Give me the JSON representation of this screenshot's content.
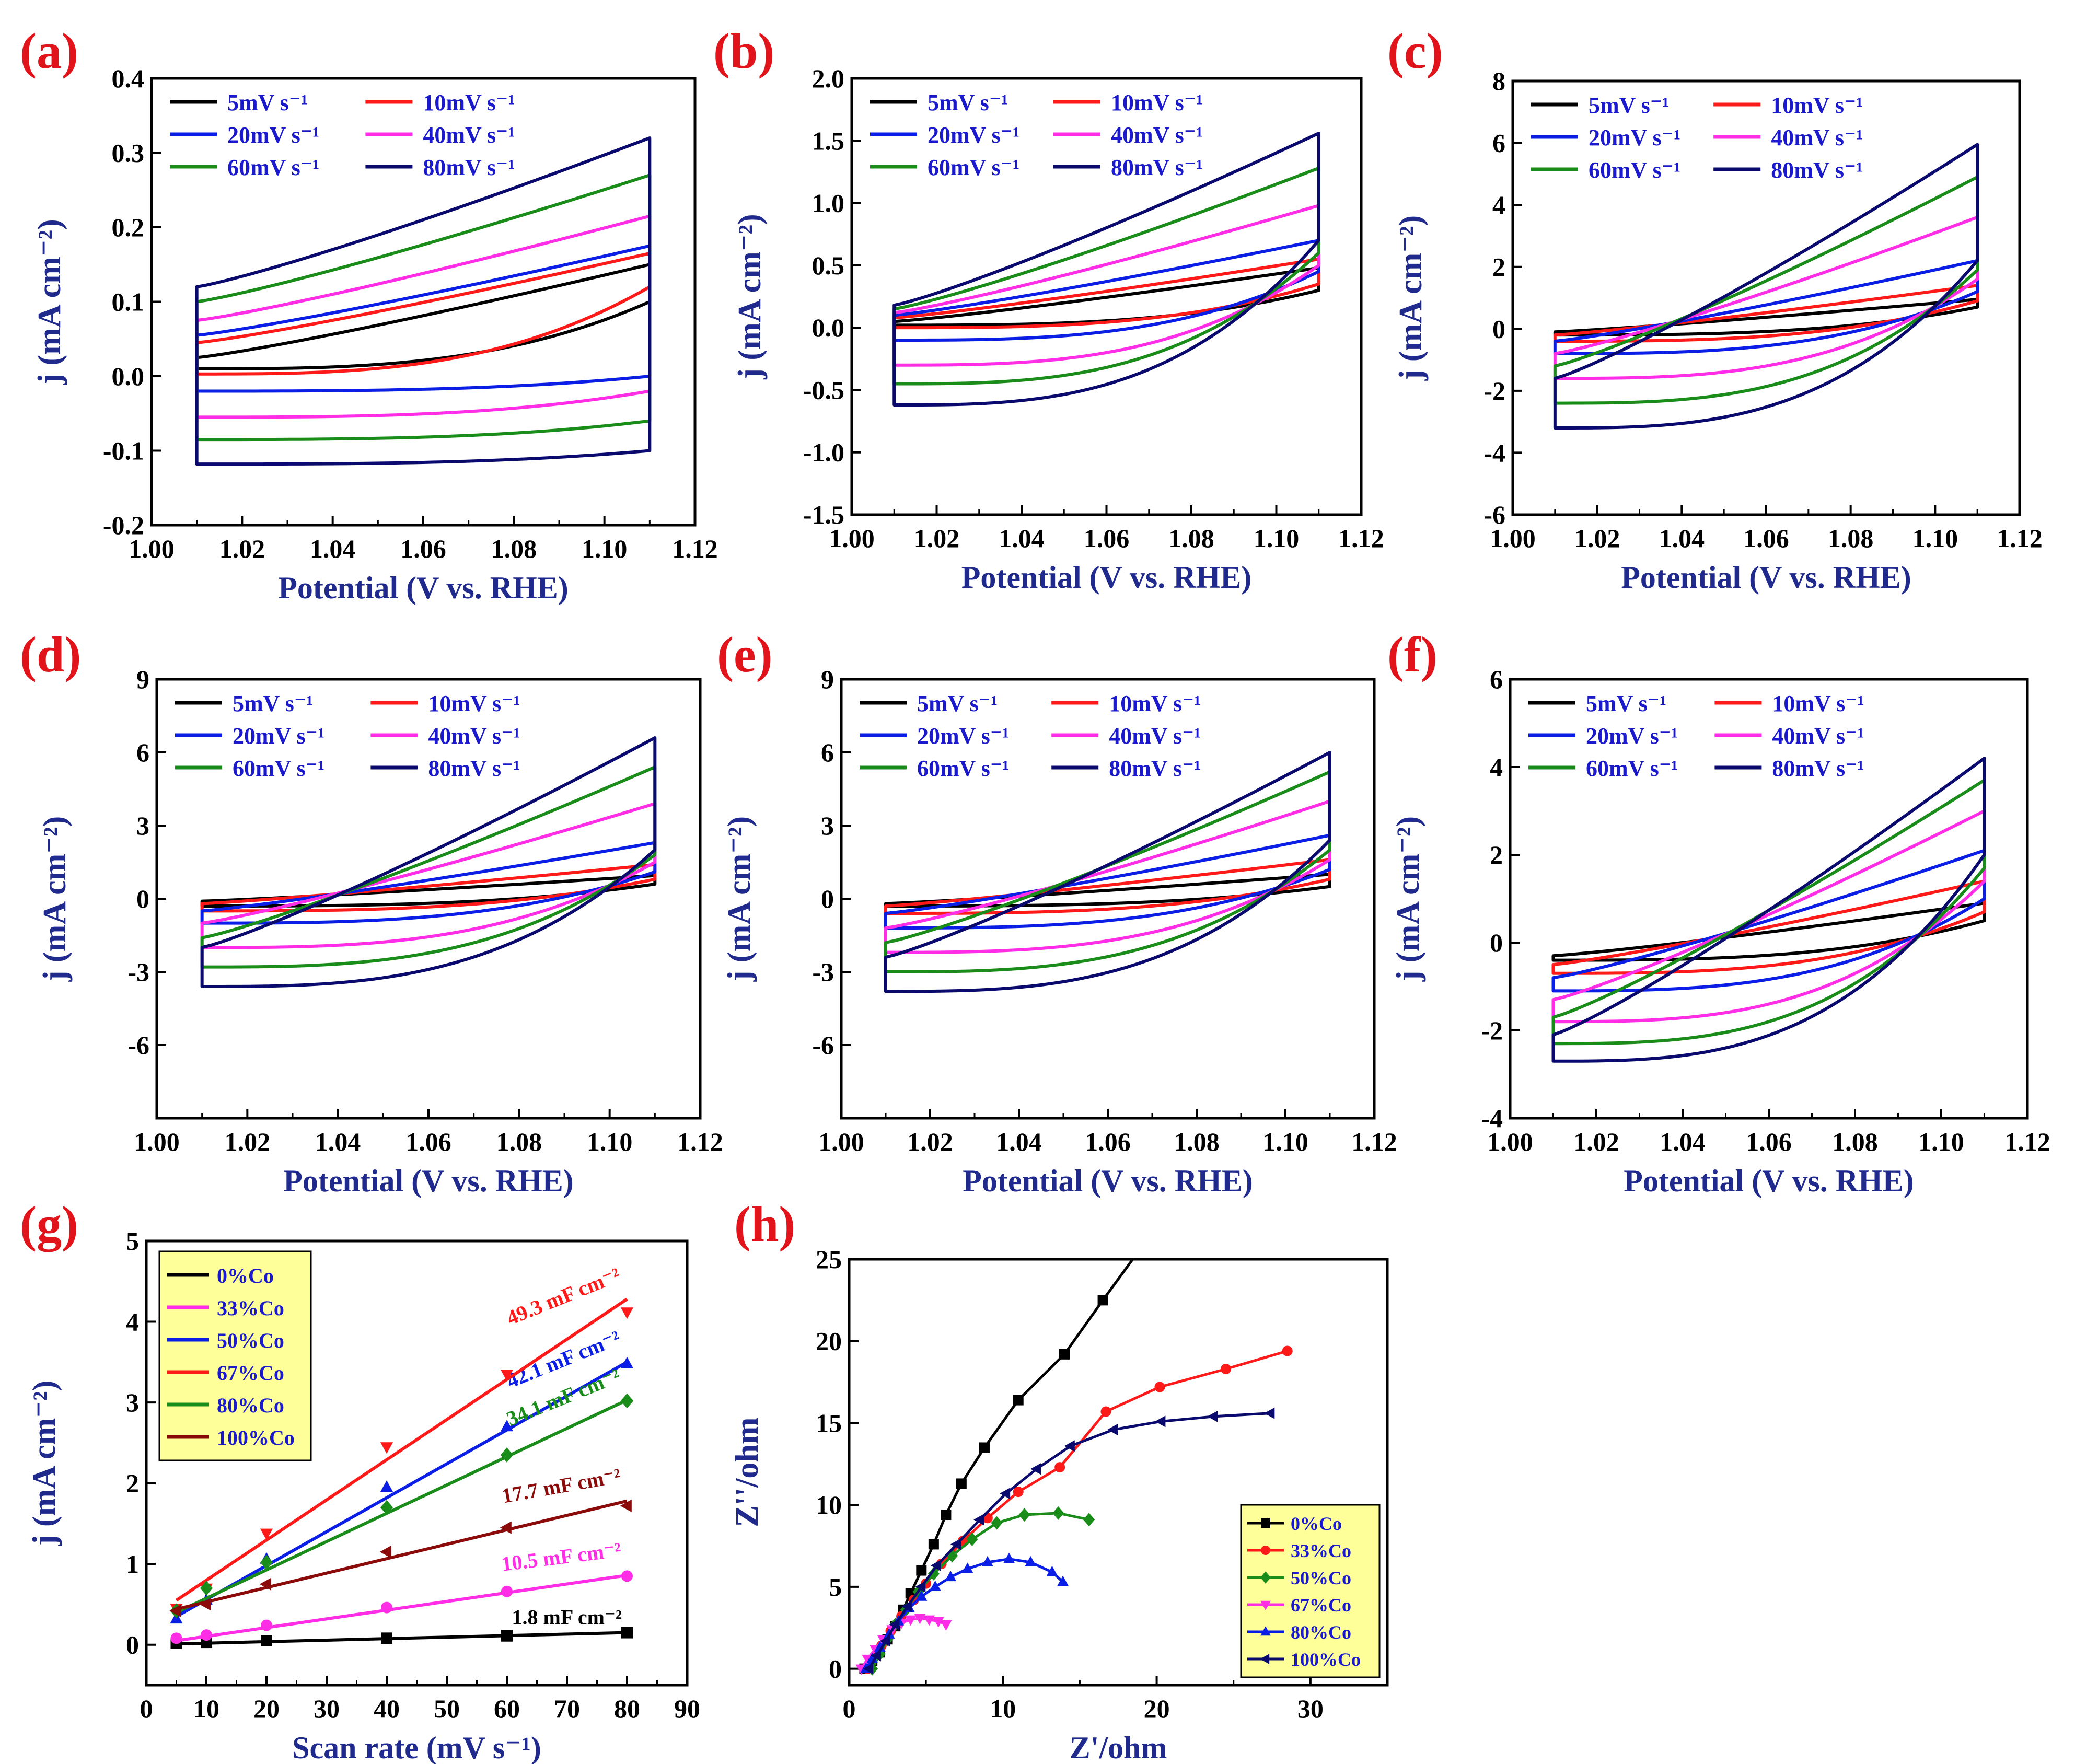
{
  "legend_cv": [
    "5mV s⁻¹",
    "10mV s⁻¹",
    "20mV s⁻¹",
    "40mV s⁻¹",
    "60mV s⁻¹",
    "80mV s⁻¹"
  ],
  "legend_text_color": "#1a1acc",
  "frame_color": "#000000",
  "axis_label_color": "#1f2a8c",
  "panel_label_color": "#e0141a",
  "chart_data": [
    {
      "panel": "(a)",
      "type": "line",
      "xlabel": "Potential (V vs. RHE)",
      "ylabel": "j (mA cm⁻²)",
      "xlim": [
        1.0,
        1.12
      ],
      "ylim": [
        -0.2,
        0.4
      ],
      "xticks": [
        "1.00",
        "1.02",
        "1.04",
        "1.06",
        "1.08",
        "1.10",
        "1.12"
      ],
      "yticks": [
        "-0.2",
        "-0.1",
        "0.0",
        "0.1",
        "0.2",
        "0.3",
        "0.4"
      ],
      "legend_placement": "top-left",
      "series": [
        {
          "name": "5mV s⁻¹",
          "color": "#000000",
          "upper_start": 0.025,
          "upper_end": 0.15,
          "lower_start": 0.01,
          "lower_end": 0.1,
          "bow": 0.5
        },
        {
          "name": "10mV s⁻¹",
          "color": "#ff1a1a",
          "upper_start": 0.045,
          "upper_end": 0.165,
          "lower_start": 0.003,
          "lower_end": 0.12,
          "bow": 0.3
        },
        {
          "name": "20mV s⁻¹",
          "color": "#0a1ee6",
          "upper_start": 0.055,
          "upper_end": 0.175,
          "lower_start": -0.02,
          "lower_end": 0.0,
          "bow": 0.2
        },
        {
          "name": "40mV s⁻¹",
          "color": "#ff2ee6",
          "upper_start": 0.075,
          "upper_end": 0.215,
          "lower_start": -0.055,
          "lower_end": -0.02,
          "bow": 0.2
        },
        {
          "name": "60mV s⁻¹",
          "color": "#1a8c1a",
          "upper_start": 0.1,
          "upper_end": 0.27,
          "lower_start": -0.085,
          "lower_end": -0.06,
          "bow": 0.2
        },
        {
          "name": "80mV s⁻¹",
          "color": "#0a0a6e",
          "upper_start": 0.12,
          "upper_end": 0.32,
          "lower_start": -0.118,
          "lower_end": -0.1,
          "bow": 0.15
        }
      ]
    },
    {
      "panel": "(b)",
      "type": "line",
      "xlabel": "Potential (V vs. RHE)",
      "ylabel": "j (mA cm⁻²)",
      "xlim": [
        1.0,
        1.12
      ],
      "ylim": [
        -1.5,
        2.0
      ],
      "xticks": [
        "1.00",
        "1.02",
        "1.04",
        "1.06",
        "1.08",
        "1.10",
        "1.12"
      ],
      "yticks": [
        "-1.5",
        "-1.0",
        "-0.5",
        "0.0",
        "0.5",
        "1.0",
        "1.5",
        "2.0"
      ],
      "legend_placement": "top-left",
      "series": [
        {
          "name": "5mV s⁻¹",
          "color": "#000000",
          "upper_start": 0.05,
          "upper_end": 0.48,
          "lower_start": 0.02,
          "lower_end": 0.3,
          "bow": 0.6
        },
        {
          "name": "10mV s⁻¹",
          "color": "#ff1a1a",
          "upper_start": 0.08,
          "upper_end": 0.55,
          "lower_start": 0.0,
          "lower_end": 0.35,
          "bow": 0.4
        },
        {
          "name": "20mV s⁻¹",
          "color": "#0a1ee6",
          "upper_start": 0.1,
          "upper_end": 0.7,
          "lower_start": -0.1,
          "lower_end": 0.45,
          "bow": 0.5
        },
        {
          "name": "40mV s⁻¹",
          "color": "#ff2ee6",
          "upper_start": 0.12,
          "upper_end": 0.98,
          "lower_start": -0.3,
          "lower_end": 0.5,
          "bow": 0.6
        },
        {
          "name": "60mV s⁻¹",
          "color": "#1a8c1a",
          "upper_start": 0.15,
          "upper_end": 1.28,
          "lower_start": -0.45,
          "lower_end": 0.6,
          "bow": 0.7
        },
        {
          "name": "80mV s⁻¹",
          "color": "#0a0a6e",
          "upper_start": 0.18,
          "upper_end": 1.56,
          "lower_start": -0.62,
          "lower_end": 0.7,
          "bow": 0.8
        }
      ]
    },
    {
      "panel": "(c)",
      "type": "line",
      "xlabel": "Potential (V vs. RHE)",
      "ylabel": "j (mA cm⁻²)",
      "xlim": [
        1.0,
        1.12
      ],
      "ylim": [
        -6,
        8
      ],
      "xticks": [
        "1.00",
        "1.02",
        "1.04",
        "1.06",
        "1.08",
        "1.10",
        "1.12"
      ],
      "yticks": [
        "-6",
        "-4",
        "-2",
        "0",
        "2",
        "4",
        "6",
        "8"
      ],
      "legend_placement": "top-left",
      "series": [
        {
          "name": "5mV s⁻¹",
          "color": "#000000",
          "upper_start": -0.1,
          "upper_end": 0.95,
          "lower_start": -0.2,
          "lower_end": 0.7,
          "bow": 0.5
        },
        {
          "name": "10mV s⁻¹",
          "color": "#ff1a1a",
          "upper_start": -0.2,
          "upper_end": 1.4,
          "lower_start": -0.4,
          "lower_end": 0.9,
          "bow": 0.7
        },
        {
          "name": "20mV s⁻¹",
          "color": "#0a1ee6",
          "upper_start": -0.4,
          "upper_end": 2.2,
          "lower_start": -0.8,
          "lower_end": 1.2,
          "bow": 1.0
        },
        {
          "name": "40mV s⁻¹",
          "color": "#ff2ee6",
          "upper_start": -0.8,
          "upper_end": 3.6,
          "lower_start": -1.6,
          "lower_end": 1.6,
          "bow": 1.5
        },
        {
          "name": "60mV s⁻¹",
          "color": "#1a8c1a",
          "upper_start": -1.2,
          "upper_end": 4.9,
          "lower_start": -2.4,
          "lower_end": 1.9,
          "bow": 2.0
        },
        {
          "name": "80mV s⁻¹",
          "color": "#0a0a6e",
          "upper_start": -1.6,
          "upper_end": 5.95,
          "lower_start": -3.2,
          "lower_end": 2.2,
          "bow": 2.4
        }
      ]
    },
    {
      "panel": "(d)",
      "type": "line",
      "xlabel": "Potential (V vs. RHE)",
      "ylabel": "j (mA cm⁻²)",
      "xlim": [
        1.0,
        1.12
      ],
      "ylim": [
        -9,
        9
      ],
      "xticks": [
        "1.00",
        "1.02",
        "1.04",
        "1.06",
        "1.08",
        "1.10",
        "1.12"
      ],
      "yticks": [
        "-6",
        "-3",
        "0",
        "3",
        "6",
        "9"
      ],
      "legend_placement": "top-left",
      "series": [
        {
          "name": "5mV s⁻¹",
          "color": "#000000",
          "upper_start": -0.1,
          "upper_end": 0.95,
          "lower_start": -0.3,
          "lower_end": 0.6,
          "bow": 0.5
        },
        {
          "name": "10mV s⁻¹",
          "color": "#ff1a1a",
          "upper_start": -0.2,
          "upper_end": 1.4,
          "lower_start": -0.5,
          "lower_end": 0.8,
          "bow": 0.7
        },
        {
          "name": "20mV s⁻¹",
          "color": "#0a1ee6",
          "upper_start": -0.5,
          "upper_end": 2.3,
          "lower_start": -1.0,
          "lower_end": 1.1,
          "bow": 1.2
        },
        {
          "name": "40mV s⁻¹",
          "color": "#ff2ee6",
          "upper_start": -1.0,
          "upper_end": 3.9,
          "lower_start": -2.0,
          "lower_end": 1.5,
          "bow": 2.0
        },
        {
          "name": "60mV s⁻¹",
          "color": "#1a8c1a",
          "upper_start": -1.6,
          "upper_end": 5.4,
          "lower_start": -2.8,
          "lower_end": 1.8,
          "bow": 2.6
        },
        {
          "name": "80mV s⁻¹",
          "color": "#0a0a6e",
          "upper_start": -2.0,
          "upper_end": 6.6,
          "lower_start": -3.6,
          "lower_end": 2.0,
          "bow": 3.0
        }
      ]
    },
    {
      "panel": "(e)",
      "type": "line",
      "xlabel": "Potential (V vs. RHE)",
      "ylabel": "j (mA cm⁻²)",
      "xlim": [
        1.0,
        1.12
      ],
      "ylim": [
        -9,
        9
      ],
      "xticks": [
        "1.00",
        "1.02",
        "1.04",
        "1.06",
        "1.08",
        "1.10",
        "1.12"
      ],
      "yticks": [
        "-6",
        "-3",
        "0",
        "3",
        "6",
        "9"
      ],
      "legend_placement": "top-left",
      "series": [
        {
          "name": "5mV s⁻¹",
          "color": "#000000",
          "upper_start": -0.2,
          "upper_end": 1.0,
          "lower_start": -0.3,
          "lower_end": 0.5,
          "bow": 0.4
        },
        {
          "name": "10mV s⁻¹",
          "color": "#ff1a1a",
          "upper_start": -0.3,
          "upper_end": 1.6,
          "lower_start": -0.6,
          "lower_end": 0.8,
          "bow": 0.6
        },
        {
          "name": "20mV s⁻¹",
          "color": "#0a1ee6",
          "upper_start": -0.6,
          "upper_end": 2.6,
          "lower_start": -1.2,
          "lower_end": 1.2,
          "bow": 1.0
        },
        {
          "name": "40mV s⁻¹",
          "color": "#ff2ee6",
          "upper_start": -1.2,
          "upper_end": 4.0,
          "lower_start": -2.2,
          "lower_end": 1.6,
          "bow": 1.6
        },
        {
          "name": "60mV s⁻¹",
          "color": "#1a8c1a",
          "upper_start": -1.8,
          "upper_end": 5.2,
          "lower_start": -3.0,
          "lower_end": 2.0,
          "bow": 2.0
        },
        {
          "name": "80mV s⁻¹",
          "color": "#0a0a6e",
          "upper_start": -2.4,
          "upper_end": 6.0,
          "lower_start": -3.8,
          "lower_end": 2.4,
          "bow": 2.3
        }
      ]
    },
    {
      "panel": "(f)",
      "type": "line",
      "xlabel": "Potential (V vs. RHE)",
      "ylabel": "j (mA cm⁻²)",
      "xlim": [
        1.0,
        1.12
      ],
      "ylim": [
        -4,
        6
      ],
      "xticks": [
        "1.00",
        "1.02",
        "1.04",
        "1.06",
        "1.08",
        "1.10",
        "1.12"
      ],
      "yticks": [
        "-4",
        "-2",
        "0",
        "2",
        "4",
        "6"
      ],
      "legend_placement": "top-left",
      "series": [
        {
          "name": "5mV s⁻¹",
          "color": "#000000",
          "upper_start": -0.3,
          "upper_end": 0.9,
          "lower_start": -0.4,
          "lower_end": 0.5,
          "bow": 0.2
        },
        {
          "name": "10mV s⁻¹",
          "color": "#ff1a1a",
          "upper_start": -0.5,
          "upper_end": 1.4,
          "lower_start": -0.7,
          "lower_end": 0.7,
          "bow": 0.2
        },
        {
          "name": "20mV s⁻¹",
          "color": "#0a1ee6",
          "upper_start": -0.8,
          "upper_end": 2.1,
          "lower_start": -1.1,
          "lower_end": 1.0,
          "bow": 0.3
        },
        {
          "name": "40mV s⁻¹",
          "color": "#ff2ee6",
          "upper_start": -1.3,
          "upper_end": 3.0,
          "lower_start": -1.8,
          "lower_end": 1.4,
          "bow": 0.4
        },
        {
          "name": "60mV s⁻¹",
          "color": "#1a8c1a",
          "upper_start": -1.7,
          "upper_end": 3.7,
          "lower_start": -2.3,
          "lower_end": 1.7,
          "bow": 0.5
        },
        {
          "name": "80mV s⁻¹",
          "color": "#0a0a6e",
          "upper_start": -2.1,
          "upper_end": 4.2,
          "lower_start": -2.7,
          "lower_end": 2.0,
          "bow": 0.6
        }
      ]
    },
    {
      "panel": "(g)",
      "type": "scatter",
      "xlabel": "Scan rate (mV s⁻¹)",
      "ylabel": "j (mA cm⁻²)",
      "xlim": [
        0,
        90
      ],
      "ylim": [
        -0.5,
        5
      ],
      "xticks": [
        "0",
        "10",
        "20",
        "30",
        "40",
        "50",
        "60",
        "70",
        "80",
        "90"
      ],
      "yticks": [
        "0",
        "1",
        "2",
        "3",
        "4",
        "5"
      ],
      "x": [
        5,
        10,
        20,
        40,
        60,
        80
      ],
      "legend_placement": "top-left",
      "legend_background": "#ffff99",
      "series": [
        {
          "name": "0%Co",
          "color": "#000000",
          "marker": "square",
          "values": [
            0.02,
            0.03,
            0.05,
            0.08,
            0.11,
            0.15
          ],
          "fit": [
            0.01,
            0.15
          ],
          "label": "1.8 mF cm⁻²"
        },
        {
          "name": "33%Co",
          "color": "#ff2ee6",
          "marker": "circle",
          "values": [
            0.08,
            0.12,
            0.24,
            0.46,
            0.66,
            0.85
          ],
          "fit": [
            0.05,
            0.86
          ],
          "label": "10.5 mF cm⁻²"
        },
        {
          "name": "50%Co",
          "color": "#0a1ee6",
          "marker": "triangle-up",
          "values": [
            0.32,
            0.55,
            1.06,
            1.95,
            2.7,
            3.48
          ],
          "fit": [
            0.35,
            3.5
          ],
          "label": "42.1 mF cm⁻²"
        },
        {
          "name": "67%Co",
          "color": "#ff1a1a",
          "marker": "triangle-down",
          "values": [
            0.45,
            0.7,
            1.38,
            2.45,
            3.35,
            4.12
          ],
          "fit": [
            0.55,
            4.28
          ],
          "label": "49.3 mF cm⁻²"
        },
        {
          "name": "80%Co",
          "color": "#1a8c1a",
          "marker": "diamond",
          "values": [
            0.42,
            0.7,
            1.02,
            1.7,
            2.35,
            3.02
          ],
          "fit": [
            0.4,
            3.03
          ],
          "label": "34.1 mF cm⁻²"
        },
        {
          "name": "100%Co",
          "color": "#8b0a0a",
          "marker": "triangle-left",
          "values": [
            0.42,
            0.5,
            0.75,
            1.15,
            1.45,
            1.72
          ],
          "fit": [
            0.44,
            1.78
          ],
          "label": "17.7 mF cm⁻²"
        }
      ]
    },
    {
      "panel": "(h)",
      "type": "scatter",
      "xlabel": "Z'/ohm",
      "ylabel": "Z''/ohm",
      "xlim": [
        0,
        35
      ],
      "ylim": [
        -1,
        25
      ],
      "xticks": [
        "0",
        "10",
        "20",
        "30"
      ],
      "yticks": [
        "0",
        "5",
        "10",
        "15",
        "20",
        "25"
      ],
      "legend_placement": "bottom-right",
      "legend_background": "#ffff99",
      "series": [
        {
          "name": "0%Co",
          "color": "#000000",
          "marker": "square",
          "x": [
            1.0,
            1.5,
            2.0,
            2.5,
            3.0,
            3.5,
            4.0,
            4.7,
            5.5,
            6.3,
            7.3,
            8.8,
            11.0,
            14.0,
            16.5
          ],
          "y": [
            0.0,
            0.5,
            1.0,
            1.8,
            2.6,
            3.6,
            4.6,
            6.0,
            7.6,
            9.4,
            11.3,
            13.5,
            16.4,
            19.2,
            22.5
          ]
        },
        {
          "name": "33%Co",
          "color": "#ff1a1a",
          "marker": "circle",
          "x": [
            1.2,
            1.6,
            2.1,
            2.7,
            3.4,
            4.2,
            5.0,
            6.0,
            7.4,
            9.0,
            11.0,
            13.7,
            16.7,
            20.2,
            24.5,
            28.5
          ],
          "y": [
            0.0,
            0.7,
            1.4,
            2.3,
            3.2,
            4.2,
            5.2,
            6.4,
            7.8,
            9.2,
            10.8,
            12.3,
            15.7,
            17.2,
            18.3,
            19.4
          ]
        },
        {
          "name": "50%Co",
          "color": "#1a8c1a",
          "marker": "diamond",
          "x": [
            1.5,
            2.0,
            2.5,
            3.0,
            3.7,
            4.5,
            5.5,
            6.7,
            8.0,
            9.6,
            11.4,
            13.6,
            15.6
          ],
          "y": [
            0.0,
            0.9,
            1.8,
            2.7,
            3.6,
            4.7,
            5.8,
            6.9,
            7.9,
            8.9,
            9.4,
            9.5,
            9.1
          ]
        },
        {
          "name": "67%Co",
          "color": "#ff2ee6",
          "marker": "triangle-down",
          "x": [
            0.8,
            1.2,
            1.7,
            2.2,
            2.8,
            3.4,
            4.0,
            4.6,
            5.2,
            5.8,
            6.3
          ],
          "y": [
            0.0,
            0.6,
            1.2,
            1.8,
            2.4,
            2.8,
            3.0,
            3.1,
            3.0,
            2.9,
            2.7
          ]
        },
        {
          "name": "80%Co",
          "color": "#0a1ee6",
          "marker": "triangle-up",
          "x": [
            1.1,
            1.5,
            2.0,
            2.6,
            3.2,
            3.9,
            4.7,
            5.6,
            6.6,
            7.7,
            9.0,
            10.4,
            11.8,
            13.2,
            13.9
          ],
          "y": [
            0.0,
            0.6,
            1.3,
            2.1,
            2.9,
            3.7,
            4.4,
            5.0,
            5.6,
            6.1,
            6.5,
            6.7,
            6.5,
            5.9,
            5.3
          ]
        },
        {
          "name": "100%Co",
          "color": "#0a0a6e",
          "marker": "triangle-left",
          "x": [
            1.3,
            1.8,
            2.4,
            3.0,
            3.8,
            4.7,
            5.7,
            7.0,
            8.5,
            10.2,
            12.2,
            14.4,
            17.2,
            20.3,
            23.7,
            27.4
          ],
          "y": [
            0.0,
            0.8,
            1.7,
            2.7,
            3.8,
            5.0,
            6.3,
            7.6,
            9.1,
            10.7,
            12.2,
            13.6,
            14.6,
            15.1,
            15.4,
            15.6
          ]
        }
      ]
    }
  ]
}
